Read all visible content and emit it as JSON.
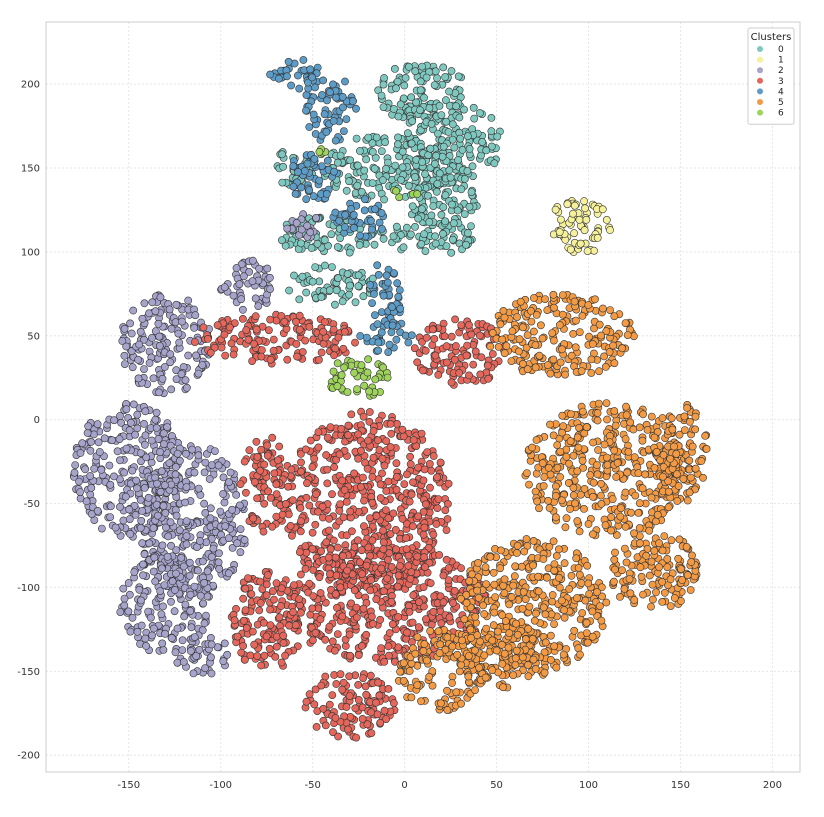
{
  "chart_data": {
    "type": "scatter",
    "title": "",
    "xlabel": "",
    "ylabel": "",
    "xlim": [
      -195,
      215
    ],
    "ylim": [
      -210,
      237
    ],
    "xticks": [
      -150,
      -100,
      -50,
      0,
      50,
      100,
      150,
      200
    ],
    "yticks": [
      200,
      150,
      100,
      50,
      0,
      -50,
      -100,
      -150,
      -200
    ],
    "grid": true,
    "legend": {
      "title": "Clusters",
      "position": "top-right",
      "entries": [
        "0",
        "1",
        "2",
        "3",
        "4",
        "5",
        "6"
      ]
    },
    "series": [
      {
        "name": "0",
        "color": "#7ec8bf",
        "regions": [
          [
            10,
            195,
            25,
            18
          ],
          [
            25,
            165,
            28,
            25
          ],
          [
            -10,
            150,
            35,
            20
          ],
          [
            20,
            130,
            20,
            15
          ],
          [
            -40,
            110,
            30,
            12
          ],
          [
            15,
            110,
            25,
            12
          ],
          [
            -40,
            80,
            25,
            12
          ],
          [
            -60,
            150,
            12,
            12
          ]
        ]
      },
      {
        "name": "1",
        "color": "#f5f09a",
        "regions": [
          [
            95,
            115,
            18,
            17
          ]
        ]
      },
      {
        "name": "2",
        "color": "#a7a4cc",
        "regions": [
          [
            -130,
            45,
            25,
            30
          ],
          [
            -150,
            -30,
            30,
            40
          ],
          [
            -115,
            -60,
            30,
            45
          ],
          [
            -130,
            -110,
            25,
            30
          ],
          [
            -110,
            -140,
            15,
            12
          ],
          [
            -85,
            80,
            15,
            15
          ],
          [
            -55,
            115,
            10,
            8
          ]
        ]
      },
      {
        "name": "3",
        "color": "#e5665b",
        "regions": [
          [
            -70,
            48,
            45,
            15
          ],
          [
            -20,
            -50,
            45,
            55
          ],
          [
            -10,
            -110,
            55,
            35
          ],
          [
            -30,
            -170,
            25,
            20
          ],
          [
            30,
            40,
            25,
            20
          ],
          [
            -75,
            -120,
            20,
            30
          ],
          [
            -75,
            -40,
            15,
            30
          ]
        ]
      },
      {
        "name": "4",
        "color": "#5d9cc6",
        "regions": [
          [
            -40,
            185,
            15,
            20
          ],
          [
            -50,
            145,
            15,
            15
          ],
          [
            -25,
            120,
            15,
            12
          ],
          [
            -10,
            75,
            10,
            20
          ],
          [
            -60,
            205,
            15,
            10
          ],
          [
            -10,
            50,
            15,
            10
          ]
        ]
      },
      {
        "name": "5",
        "color": "#f39a45",
        "regions": [
          [
            85,
            50,
            40,
            25
          ],
          [
            110,
            -30,
            45,
            40
          ],
          [
            70,
            -110,
            40,
            40
          ],
          [
            150,
            -20,
            15,
            30
          ],
          [
            135,
            -90,
            25,
            25
          ],
          [
            20,
            -150,
            25,
            25
          ],
          [
            55,
            -140,
            30,
            20
          ]
        ]
      },
      {
        "name": "6",
        "color": "#9fd45a",
        "regions": [
          [
            -25,
            25,
            18,
            12
          ],
          [
            0,
            135,
            8,
            3
          ],
          [
            -45,
            160,
            2,
            2
          ]
        ]
      }
    ]
  }
}
